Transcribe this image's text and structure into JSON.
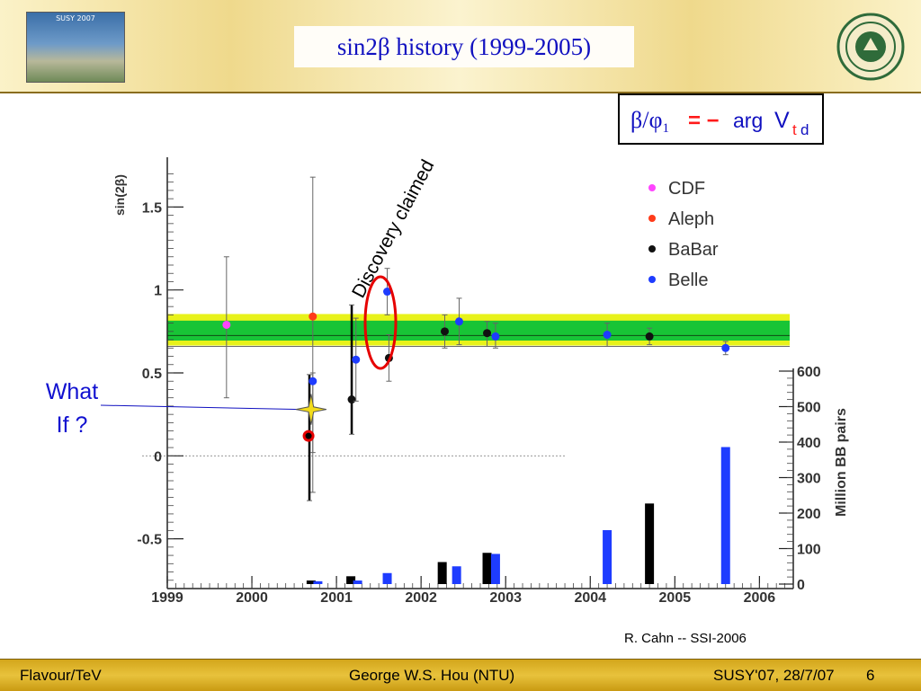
{
  "slide": {
    "title": "sin2β history (1999-2005)",
    "formula": {
      "lhs": "β/φ",
      "sub": "1",
      "eq": "= −",
      "arg": "arg",
      "v": "V",
      "t": "t",
      "d": "d"
    },
    "discovery_label": "Discovery claimed",
    "what_if": [
      "What",
      "If ?"
    ],
    "credit": "R. Cahn -- SSI-2006",
    "footer": {
      "left": "Flavour/TeV",
      "center": "George W.S. Hou (NTU)",
      "right": "SUSY'07, 28/7/07",
      "page": "6"
    },
    "logo_text": "SUSY 2007"
  },
  "chart_data": {
    "type": "scatter",
    "x_ticks": [
      "1999",
      "2000",
      "2001",
      "2002",
      "2003",
      "2004",
      "2005",
      "2006"
    ],
    "xlim": [
      1999,
      2006.4
    ],
    "ylabel": "sin(2β)",
    "y_ticks": [
      "1.5",
      "1",
      "0.5",
      "0",
      "-0.5"
    ],
    "ylim": [
      -0.8,
      1.8
    ],
    "y2label": "Million BB pairs",
    "y2_ticks": [
      "600",
      "500",
      "400",
      "300",
      "200",
      "100",
      "0"
    ],
    "y2lim": [
      0,
      600
    ],
    "band": {
      "outer": [
        0.665,
        0.855
      ],
      "inner": [
        0.695,
        0.815
      ],
      "center": 0.725
    },
    "legend": [
      {
        "name": "CDF",
        "color": "#ff44ff"
      },
      {
        "name": "Aleph",
        "color": "#ff3b1a"
      },
      {
        "name": "BaBar",
        "color": "#111111"
      },
      {
        "name": "Belle",
        "color": "#1e3cff"
      }
    ],
    "series": [
      {
        "name": "CDF",
        "points": [
          {
            "x": 1999.7,
            "y": 0.79,
            "lo": 0.35,
            "hi": 1.2
          }
        ]
      },
      {
        "name": "Aleph",
        "points": [
          {
            "x": 2000.72,
            "y": 0.84,
            "lo": -0.22,
            "hi": 1.68
          }
        ]
      },
      {
        "name": "BaBar",
        "points": [
          {
            "x": 2000.68,
            "y": 0.12,
            "lo": -0.27,
            "hi": 0.49
          },
          {
            "x": 2001.18,
            "y": 0.34,
            "lo": 0.13,
            "hi": 0.91
          },
          {
            "x": 2001.62,
            "y": 0.59,
            "lo": 0.45,
            "hi": 0.73
          },
          {
            "x": 2002.28,
            "y": 0.75,
            "lo": 0.65,
            "hi": 0.85
          },
          {
            "x": 2002.78,
            "y": 0.74,
            "lo": 0.66,
            "hi": 0.81
          },
          {
            "x": 2004.7,
            "y": 0.72,
            "lo": 0.67,
            "hi": 0.77
          }
        ]
      },
      {
        "name": "Belle",
        "points": [
          {
            "x": 2000.72,
            "y": 0.45,
            "lo": 0.02,
            "hi": 0.5
          },
          {
            "x": 2001.23,
            "y": 0.58,
            "lo": 0.33,
            "hi": 0.83
          },
          {
            "x": 2001.6,
            "y": 0.99,
            "lo": 0.85,
            "hi": 1.13
          },
          {
            "x": 2002.45,
            "y": 0.81,
            "lo": 0.67,
            "hi": 0.95
          },
          {
            "x": 2002.88,
            "y": 0.72,
            "lo": 0.65,
            "hi": 0.8
          },
          {
            "x": 2004.2,
            "y": 0.73,
            "lo": 0.66,
            "hi": 0.8
          },
          {
            "x": 2005.6,
            "y": 0.65,
            "lo": 0.61,
            "hi": 0.69
          }
        ]
      }
    ],
    "bars": [
      {
        "name": "BaBar",
        "x": 2000.7,
        "value": 10
      },
      {
        "name": "Belle",
        "x": 2000.78,
        "value": 8
      },
      {
        "name": "BaBar",
        "x": 2001.17,
        "value": 22
      },
      {
        "name": "Belle",
        "x": 2001.25,
        "value": 10
      },
      {
        "name": "Belle",
        "x": 2001.6,
        "value": 31
      },
      {
        "name": "BaBar",
        "x": 2002.25,
        "value": 62
      },
      {
        "name": "Belle",
        "x": 2002.42,
        "value": 50
      },
      {
        "name": "BaBar",
        "x": 2002.78,
        "value": 88
      },
      {
        "name": "Belle",
        "x": 2002.88,
        "value": 85
      },
      {
        "name": "Belle",
        "x": 2004.2,
        "value": 152
      },
      {
        "name": "BaBar",
        "x": 2004.7,
        "value": 227
      },
      {
        "name": "Belle",
        "x": 2005.6,
        "value": 386
      }
    ],
    "hypothetical": {
      "x": 2000.67,
      "y": 0.12
    },
    "what_if_star": {
      "x": 2000.7,
      "y": 0.28
    }
  }
}
